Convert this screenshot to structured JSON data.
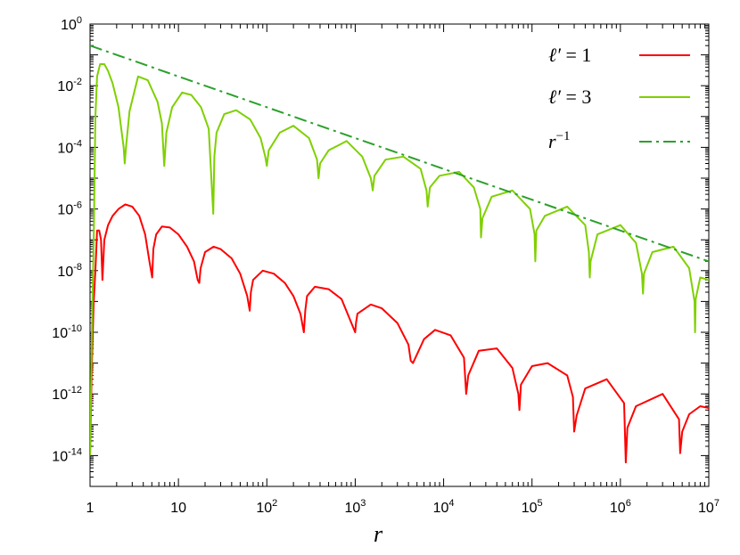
{
  "chart_data": {
    "type": "line",
    "title": "",
    "xlabel": "r",
    "ylabel": "",
    "xscale": "log",
    "yscale": "log",
    "xlim": [
      1,
      10000000
    ],
    "ylim": [
      1e-15,
      1
    ],
    "grid": false,
    "legend_position": "top-right",
    "x_ticks": [
      {
        "base": "1",
        "exp": ""
      },
      {
        "base": "10",
        "exp": ""
      },
      {
        "base": "10",
        "exp": "2"
      },
      {
        "base": "10",
        "exp": "3"
      },
      {
        "base": "10",
        "exp": "4"
      },
      {
        "base": "10",
        "exp": "5"
      },
      {
        "base": "10",
        "exp": "6"
      },
      {
        "base": "10",
        "exp": "7"
      }
    ],
    "y_ticks": [
      {
        "base": "10",
        "exp": "0"
      },
      {
        "base": "10",
        "exp": "-2"
      },
      {
        "base": "10",
        "exp": "-4"
      },
      {
        "base": "10",
        "exp": "-6"
      },
      {
        "base": "10",
        "exp": "-8"
      },
      {
        "base": "10",
        "exp": "-10"
      },
      {
        "base": "10",
        "exp": "-12"
      },
      {
        "base": "10",
        "exp": "-14"
      }
    ],
    "series": [
      {
        "name": "ℓ′ = 1",
        "name_parts": {
          "sym": "ℓ′",
          "rest": " = 1"
        },
        "color": "#ff0000",
        "style": "solid",
        "x": [
          1,
          1.05,
          1.1,
          1.15,
          1.2,
          1.27,
          1.33,
          1.38,
          1.45,
          1.6,
          1.8,
          2.1,
          2.5,
          3.0,
          3.6,
          4.2,
          4.7,
          5.05,
          5.2,
          5.6,
          6.5,
          8,
          10,
          12.5,
          15,
          16.5,
          17.2,
          17.8,
          20,
          25,
          30,
          40,
          50,
          60,
          64,
          66,
          70,
          90,
          120,
          160,
          200,
          240,
          262,
          272,
          285,
          350,
          500,
          700,
          1000,
          1020,
          1060,
          1500,
          2000,
          3000,
          4000,
          4250,
          4500,
          6000,
          8000,
          12000,
          17000,
          18000,
          19000,
          25000,
          40000,
          60000,
          70000,
          72000,
          75000,
          100000,
          150000,
          250000,
          290000,
          300000,
          320000,
          400000,
          700000,
          1100000,
          1150000,
          1200000,
          1500000,
          3000000,
          4600000,
          4750000,
          5000000,
          6000000,
          8000000,
          10000000
        ],
        "y": [
          1e-14,
          1e-11,
          1e-09,
          1e-08,
          2e-07,
          2e-07,
          1e-07,
          5e-09,
          1e-07,
          3e-07,
          6e-07,
          1e-06,
          1.4e-06,
          1.2e-06,
          6e-07,
          1.5e-07,
          2e-08,
          6e-09,
          5e-08,
          1.5e-07,
          2.7e-07,
          2.5e-07,
          1.5e-07,
          6e-08,
          2e-08,
          5e-09,
          4e-09,
          1.2e-08,
          4e-08,
          6e-08,
          5e-08,
          2.5e-08,
          8e-09,
          1.5e-09,
          5e-10,
          2e-09,
          5e-09,
          1e-08,
          8e-09,
          4e-09,
          1.5e-09,
          4e-10,
          1e-10,
          5e-10,
          1.5e-09,
          3e-09,
          2.5e-09,
          1.2e-09,
          1e-10,
          2e-10,
          4e-10,
          8e-10,
          6e-10,
          2e-10,
          4e-11,
          1.2e-11,
          1e-11,
          6e-11,
          1.2e-10,
          8e-11,
          1.5e-11,
          1e-12,
          4e-12,
          2.5e-11,
          3e-11,
          7e-12,
          1e-12,
          3e-13,
          2e-12,
          8e-12,
          1e-11,
          4e-12,
          8e-13,
          6e-14,
          2e-13,
          1.5e-12,
          3e-12,
          5e-13,
          6e-15,
          8e-14,
          4e-13,
          1e-12,
          1.5e-13,
          1.2e-14,
          6e-14,
          2.2e-13,
          4e-13,
          3.5e-13
        ]
      },
      {
        "name": "ℓ′ = 3",
        "name_parts": {
          "sym": "ℓ′",
          "rest": " = 3"
        },
        "color": "#7fd000",
        "style": "solid",
        "x": [
          1,
          1.05,
          1.1,
          1.15,
          1.2,
          1.3,
          1.45,
          1.6,
          1.8,
          2.1,
          2.4,
          2.47,
          2.55,
          2.8,
          3.5,
          4.5,
          5.8,
          6.5,
          6.9,
          7.3,
          8.5,
          11,
          14,
          18,
          22,
          24.8,
          25.5,
          27,
          33,
          45,
          65,
          85,
          96,
          100,
          105,
          140,
          200,
          300,
          370,
          385,
          400,
          500,
          800,
          1200,
          1500,
          1580,
          1650,
          2200,
          3500,
          5500,
          6400,
          6600,
          7000,
          9000,
          15000,
          22000,
          26000,
          26500,
          27500,
          35000,
          60000,
          95000,
          107000,
          109000,
          112000,
          140000,
          250000,
          400000,
          440000,
          450000,
          460000,
          550000,
          1000000,
          1500000,
          1750000,
          1800000,
          1850000,
          2300000,
          4000000,
          6000000,
          6900000,
          7000000,
          7100000,
          8000000,
          10000000
        ],
        "y": [
          1e-14,
          1e-10,
          1e-07,
          0.001,
          0.02,
          0.05,
          0.05,
          0.03,
          0.012,
          0.002,
          0.0001,
          3e-05,
          0.0001,
          0.0015,
          0.02,
          0.015,
          0.003,
          0.0006,
          2.5e-05,
          0.0003,
          0.002,
          0.006,
          0.005,
          0.002,
          0.0004,
          7e-07,
          5e-05,
          0.0003,
          0.0012,
          0.0016,
          0.0008,
          0.0002,
          5e-05,
          2.5e-05,
          8e-05,
          0.0003,
          0.0005,
          0.0002,
          4e-05,
          1e-05,
          3e-05,
          8e-05,
          0.00016,
          5e-05,
          1e-05,
          4e-06,
          1.2e-05,
          4e-05,
          5e-05,
          2e-05,
          4e-06,
          1.2e-06,
          5e-06,
          1.2e-05,
          1.6e-05,
          5e-06,
          1e-06,
          1.2e-07,
          5e-07,
          2.5e-06,
          4e-06,
          1e-06,
          1.5e-07,
          2e-08,
          2e-07,
          6e-07,
          1.2e-06,
          3e-07,
          4e-08,
          6e-09,
          2e-08,
          1.5e-07,
          3e-07,
          8e-08,
          8e-09,
          1.8e-09,
          8e-09,
          4e-08,
          6e-08,
          1.2e-08,
          1e-09,
          1e-10,
          1.2e-09,
          6e-09,
          5e-09
        ]
      },
      {
        "name": "r⁻¹",
        "name_parts": {
          "sym": "r",
          "exp": "−1"
        },
        "color": "#2ca02c",
        "style": "dash-dot",
        "x": [
          1,
          10000000
        ],
        "y": [
          0.2,
          2e-08
        ]
      }
    ]
  }
}
